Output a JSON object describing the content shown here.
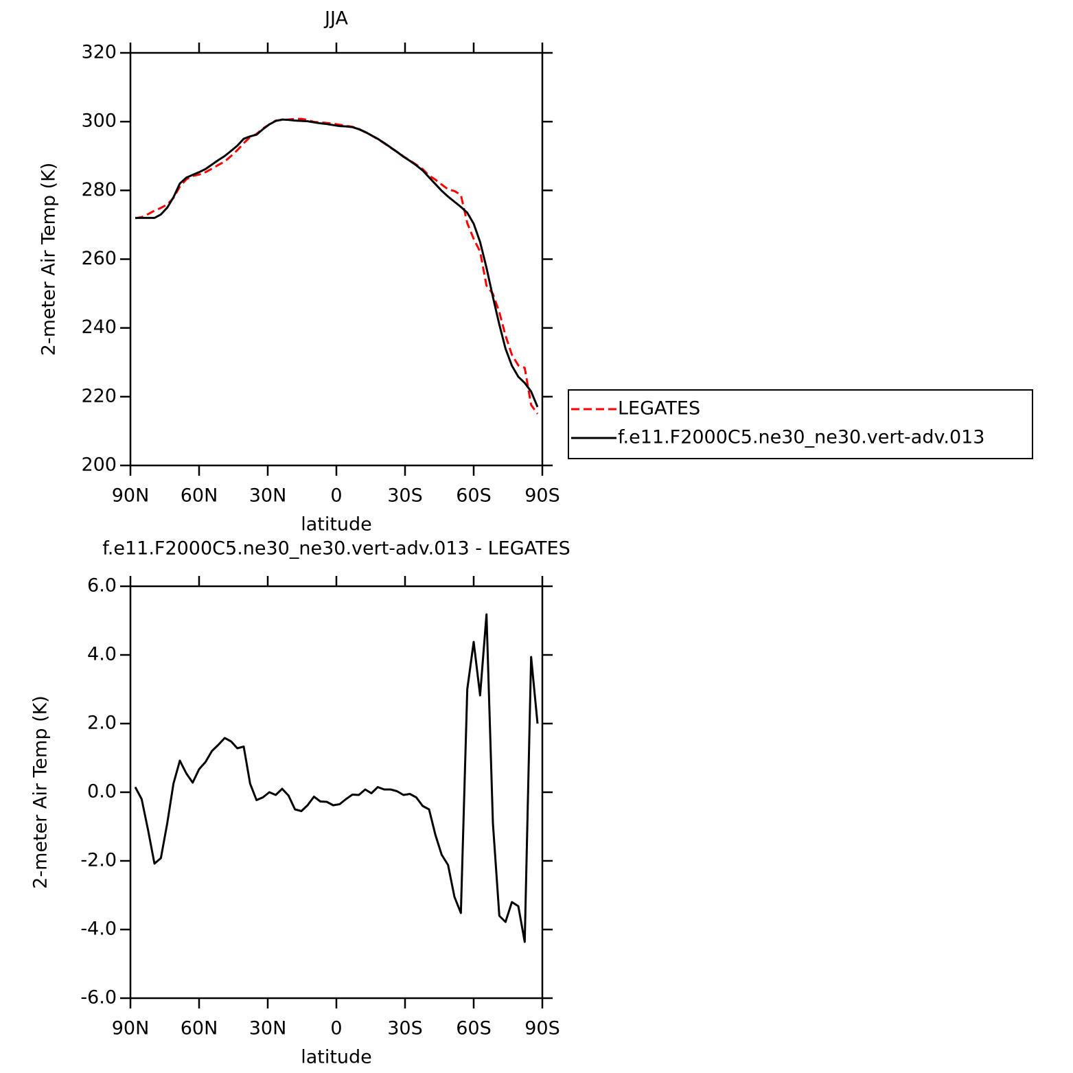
{
  "chart_data": [
    {
      "type": "line",
      "title": "JJA",
      "xlabel": "latitude",
      "ylabel": "2-meter Air Temp (K)",
      "x": [
        87.9,
        85.1,
        82.3,
        79.5,
        76.7,
        73.9,
        71.2,
        68.4,
        65.6,
        62.8,
        60.0,
        57.2,
        54.4,
        51.6,
        48.8,
        46.0,
        43.3,
        40.5,
        37.7,
        34.9,
        32.1,
        29.3,
        26.5,
        23.7,
        20.9,
        18.1,
        15.3,
        12.6,
        9.8,
        7.0,
        4.2,
        1.4,
        -1.4,
        -4.2,
        -7.0,
        -9.8,
        -12.6,
        -15.3,
        -18.1,
        -20.9,
        -23.7,
        -26.5,
        -29.3,
        -32.1,
        -34.9,
        -37.7,
        -40.5,
        -43.3,
        -46.0,
        -48.8,
        -51.6,
        -54.4,
        -57.2,
        -60.0,
        -62.8,
        -65.6,
        -68.4,
        -71.2,
        -73.9,
        -76.7,
        -79.5,
        -82.3,
        -85.1,
        -87.9
      ],
      "series": [
        {
          "name": "LEGATES",
          "color": "#ff0000",
          "line_style": "dashed",
          "values": [
            271.9,
            272.2,
            273.1,
            274.1,
            274.9,
            275.9,
            277.8,
            281.1,
            283.2,
            284.2,
            284.6,
            285.3,
            286.3,
            287.4,
            288.4,
            290.0,
            291.7,
            293.7,
            295.5,
            296.4,
            298.0,
            299.2,
            300.3,
            300.5,
            300.6,
            300.8,
            300.8,
            300.5,
            299.9,
            299.8,
            299.6,
            299.4,
            299.1,
            298.8,
            298.5,
            297.9,
            296.9,
            296.0,
            294.9,
            293.7,
            292.4,
            291.2,
            289.9,
            288.7,
            287.5,
            286.2,
            284.3,
            283.1,
            281.7,
            280.3,
            279.8,
            278.7,
            270.5,
            265.9,
            262.2,
            252.3,
            249.9,
            244.6,
            237.8,
            232.2,
            229.1,
            228.4,
            217.6,
            215.0
          ]
        },
        {
          "name": "f.e11.F2000C5.ne30_ne30.vert-adv.013",
          "color": "#000000",
          "line_style": "solid",
          "values": [
            272.0,
            272.0,
            272.0,
            272.0,
            273.0,
            275.0,
            278.0,
            282.0,
            283.7,
            284.5,
            285.3,
            286.2,
            287.5,
            288.8,
            290.0,
            291.5,
            293.0,
            295.0,
            295.7,
            296.2,
            297.8,
            299.2,
            300.2,
            300.6,
            300.5,
            300.3,
            300.2,
            300.1,
            299.8,
            299.5,
            299.3,
            299.0,
            298.7,
            298.6,
            298.4,
            297.8,
            297.0,
            296.0,
            295.0,
            293.8,
            292.5,
            291.2,
            289.8,
            288.6,
            287.3,
            285.8,
            283.8,
            281.8,
            279.9,
            278.2,
            276.7,
            275.2,
            273.5,
            270.3,
            265.0,
            257.5,
            249.0,
            241.0,
            234.0,
            229.0,
            225.8,
            224.0,
            221.5,
            217.0
          ]
        }
      ],
      "xlim": [
        90,
        -90
      ],
      "xticks": [
        {
          "value": 90,
          "label": "90N"
        },
        {
          "value": 60,
          "label": "60N"
        },
        {
          "value": 30,
          "label": "30N"
        },
        0,
        {
          "value": -30,
          "label": "30S"
        },
        {
          "value": -60,
          "label": "60S"
        },
        {
          "value": -90,
          "label": "90S"
        }
      ],
      "ylim": [
        200,
        320
      ],
      "yticks": [
        200,
        220,
        240,
        260,
        280,
        300,
        320
      ],
      "legend": "right"
    },
    {
      "type": "line",
      "title": "f.e11.F2000C5.ne30_ne30.vert-adv.013 - LEGATES",
      "xlabel": "latitude",
      "ylabel": "2-meter Air Temp (K)",
      "x": [
        87.9,
        85.1,
        82.3,
        79.5,
        76.7,
        73.9,
        71.2,
        68.4,
        65.6,
        62.8,
        60.0,
        57.2,
        54.4,
        51.6,
        48.8,
        46.0,
        43.3,
        40.5,
        37.7,
        34.9,
        32.1,
        29.3,
        26.5,
        23.7,
        20.9,
        18.1,
        15.3,
        12.6,
        9.8,
        7.0,
        4.2,
        1.4,
        -1.4,
        -4.2,
        -7.0,
        -9.8,
        -12.6,
        -15.3,
        -18.1,
        -20.9,
        -23.7,
        -26.5,
        -29.3,
        -32.1,
        -34.9,
        -37.7,
        -40.5,
        -43.3,
        -46.0,
        -48.8,
        -51.6,
        -54.4,
        -57.2,
        -60.0,
        -62.8,
        -65.6,
        -68.4,
        -71.2,
        -73.9,
        -76.7,
        -79.5,
        -82.3,
        -85.1,
        -87.9
      ],
      "series": [
        {
          "color": "#000000",
          "line_style": "solid",
          "values": [
            0.15,
            -0.2,
            -1.1,
            -2.08,
            -1.92,
            -0.9,
            0.25,
            0.92,
            0.55,
            0.28,
            0.67,
            0.88,
            1.2,
            1.38,
            1.58,
            1.48,
            1.28,
            1.33,
            0.25,
            -0.23,
            -0.15,
            0.0,
            -0.08,
            0.1,
            -0.1,
            -0.5,
            -0.55,
            -0.38,
            -0.13,
            -0.27,
            -0.28,
            -0.38,
            -0.35,
            -0.2,
            -0.07,
            -0.08,
            0.08,
            -0.03,
            0.15,
            0.08,
            0.08,
            0.03,
            -0.08,
            -0.05,
            -0.15,
            -0.4,
            -0.5,
            -1.25,
            -1.82,
            -2.12,
            -3.05,
            -3.52,
            3.0,
            4.38,
            2.82,
            5.18,
            -0.9,
            -3.6,
            -3.78,
            -3.2,
            -3.32,
            -4.36,
            3.94,
            2.0
          ]
        }
      ],
      "xlim": [
        90,
        -90
      ],
      "xticks": [
        {
          "value": 90,
          "label": "90N"
        },
        {
          "value": 60,
          "label": "60N"
        },
        {
          "value": 30,
          "label": "30N"
        },
        0,
        {
          "value": -30,
          "label": "30S"
        },
        {
          "value": -60,
          "label": "60S"
        },
        {
          "value": -90,
          "label": "90S"
        }
      ],
      "ylim": [
        -6,
        6
      ],
      "yticks": [
        {
          "value": -6,
          "label": "-6.0"
        },
        {
          "value": -4,
          "label": "-4.0"
        },
        {
          "value": -2,
          "label": "-2.0"
        },
        {
          "value": 0,
          "label": "0.0"
        },
        {
          "value": 2,
          "label": "2.0"
        },
        {
          "value": 4,
          "label": "4.0"
        },
        {
          "value": 6,
          "label": "6.0"
        }
      ]
    }
  ]
}
